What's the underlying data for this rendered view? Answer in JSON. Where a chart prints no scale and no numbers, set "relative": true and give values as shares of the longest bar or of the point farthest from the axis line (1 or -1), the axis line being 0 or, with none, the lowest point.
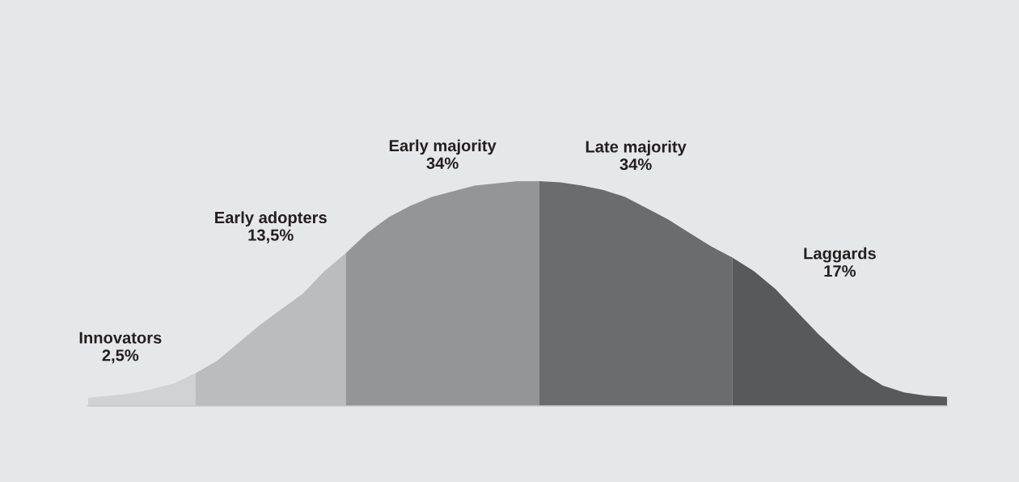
{
  "chart_data": {
    "type": "area",
    "relative": true,
    "categories": [
      null,
      null,
      null,
      null,
      null,
      null,
      null,
      null,
      null,
      null,
      null,
      null,
      null,
      null,
      null,
      null,
      null,
      null,
      null,
      null,
      null,
      null,
      null,
      null,
      null,
      null,
      null,
      null,
      null,
      null,
      null,
      null,
      null,
      null,
      null,
      null,
      null,
      null,
      null,
      null,
      null
    ],
    "series": [
      {
        "name": "Innovators",
        "color": "#d1d2d4",
        "values": [
          0.036,
          0.045,
          0.055,
          0.075,
          0.1,
          0.145,
          null,
          null,
          null,
          null,
          null,
          null,
          null,
          null,
          null,
          null,
          null,
          null,
          null,
          null,
          null,
          null,
          null,
          null,
          null,
          null,
          null,
          null,
          null,
          null,
          null,
          null,
          null,
          null,
          null,
          null,
          null,
          null,
          null,
          null,
          null
        ]
      },
      {
        "name": "Early adopters",
        "color": "#bbbcc0",
        "values": [
          null,
          null,
          null,
          null,
          null,
          0.145,
          0.2,
          0.28,
          0.36,
          0.43,
          0.5,
          0.6,
          0.68,
          null,
          null,
          null,
          null,
          null,
          null,
          null,
          null,
          null,
          null,
          null,
          null,
          null,
          null,
          null,
          null,
          null,
          null,
          null,
          null,
          null,
          null,
          null,
          null,
          null,
          null,
          null,
          null
        ]
      },
      {
        "name": "Early majority",
        "color": "#939598",
        "values": [
          null,
          null,
          null,
          null,
          null,
          null,
          null,
          null,
          null,
          null,
          null,
          null,
          0.68,
          0.77,
          0.84,
          0.89,
          0.93,
          0.955,
          0.98,
          0.99,
          1.0,
          1.0,
          null,
          null,
          null,
          null,
          null,
          null,
          null,
          null,
          null,
          null,
          null,
          null,
          null,
          null,
          null,
          null,
          null,
          null,
          null
        ]
      },
      {
        "name": "Late majority",
        "color": "#6b6c70",
        "values": [
          null,
          null,
          null,
          null,
          null,
          null,
          null,
          null,
          null,
          null,
          null,
          null,
          null,
          null,
          null,
          null,
          null,
          null,
          null,
          null,
          null,
          1.0,
          0.995,
          0.98,
          0.96,
          0.93,
          0.88,
          0.83,
          0.77,
          0.71,
          0.66,
          null,
          null,
          null,
          null,
          null,
          null,
          null,
          null,
          null,
          null
        ]
      },
      {
        "name": "Laggards",
        "color": "#58595b",
        "values": [
          null,
          null,
          null,
          null,
          null,
          null,
          null,
          null,
          null,
          null,
          null,
          null,
          null,
          null,
          null,
          null,
          null,
          null,
          null,
          null,
          null,
          null,
          null,
          null,
          null,
          null,
          null,
          null,
          null,
          null,
          0.66,
          0.6,
          0.52,
          0.42,
          0.32,
          0.23,
          0.15,
          0.09,
          0.06,
          0.045,
          0.04
        ]
      }
    ],
    "annotations": [
      "2,5%",
      "13,5%",
      "34%",
      "34%",
      "17%"
    ]
  }
}
